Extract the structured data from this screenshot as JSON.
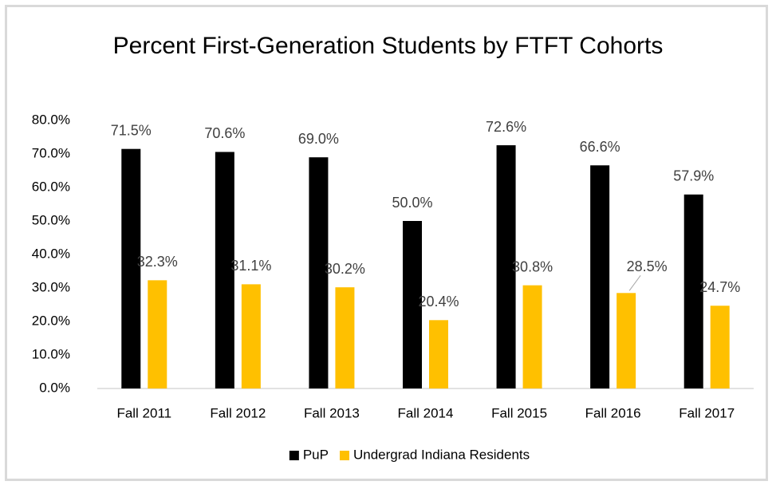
{
  "chart_data": {
    "type": "bar",
    "title": "Percent First-Generation Students by FTFT Cohorts",
    "categories": [
      "Fall 2011",
      "Fall 2012",
      "Fall 2013",
      "Fall 2014",
      "Fall 2015",
      "Fall 2016",
      "Fall 2017"
    ],
    "series": [
      {
        "name": "PuP",
        "color": "#000000",
        "values": [
          71.5,
          70.6,
          69.0,
          50.0,
          72.6,
          66.6,
          57.9
        ],
        "value_labels": [
          "71.5%",
          "70.6%",
          "69.0%",
          "50.0%",
          "72.6%",
          "66.6%",
          "57.9%"
        ]
      },
      {
        "name": "Undergrad Indiana Residents",
        "color": "#ffc000",
        "values": [
          32.3,
          31.1,
          30.2,
          20.4,
          30.8,
          28.5,
          24.7
        ],
        "value_labels": [
          "32.3%",
          "31.1%",
          "30.2%",
          "20.4%",
          "30.8%",
          "28.5%",
          "24.7%"
        ]
      }
    ],
    "ylim": [
      0,
      80
    ],
    "yticks": [
      {
        "value": 0,
        "label": "0.0%"
      },
      {
        "value": 10,
        "label": "10.0%"
      },
      {
        "value": 20,
        "label": "20.0%"
      },
      {
        "value": 30,
        "label": "30.0%"
      },
      {
        "value": 40,
        "label": "40.0%"
      },
      {
        "value": 50,
        "label": "50.0%"
      },
      {
        "value": 60,
        "label": "60.0%"
      },
      {
        "value": 70,
        "label": "70.0%"
      },
      {
        "value": 80,
        "label": "80.0%"
      }
    ],
    "grid": false,
    "legend": "bottom"
  }
}
